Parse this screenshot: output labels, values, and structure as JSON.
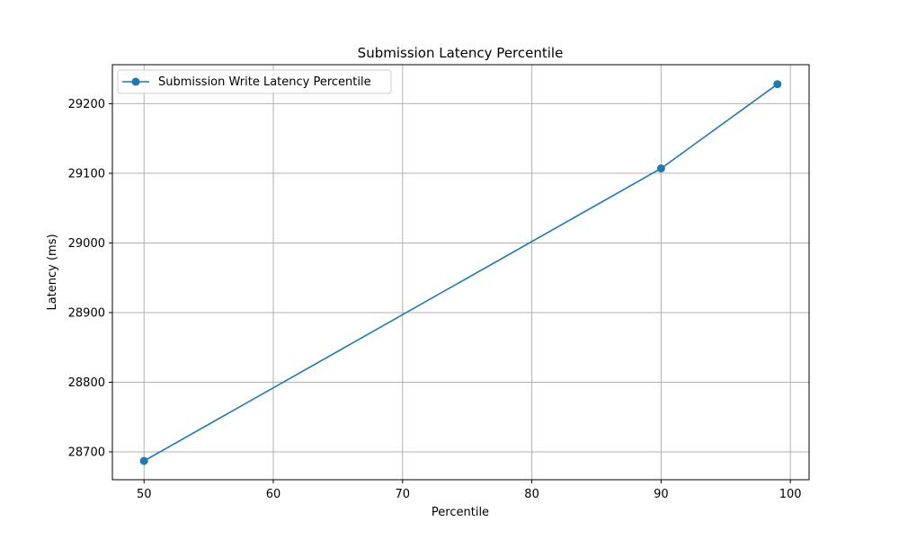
{
  "chart_data": {
    "type": "line",
    "title": "Submission Latency Percentile",
    "xlabel": "Percentile",
    "ylabel": "Latency (ms)",
    "xlim": [
      47.55,
      101.45
    ],
    "ylim": [
      28660,
      29256
    ],
    "x_ticks": [
      50,
      60,
      70,
      80,
      90,
      100
    ],
    "y_ticks": [
      28700,
      28800,
      28900,
      29000,
      29100,
      29200
    ],
    "grid": true,
    "legend_position": "upper-left",
    "series": [
      {
        "name": "Submission Write Latency Percentile",
        "color": "#1f77b4",
        "marker": "circle",
        "x": [
          50,
          90,
          99
        ],
        "y": [
          28687,
          29107,
          29228
        ]
      }
    ]
  }
}
